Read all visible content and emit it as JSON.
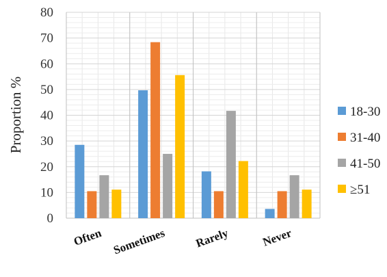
{
  "chart_data": {
    "type": "bar",
    "categories": [
      "Often",
      "Sometimes",
      "Rarely",
      "Never"
    ],
    "series": [
      {
        "name": "18-30",
        "color": "#5B9BD5",
        "values": [
          28.5,
          49.7,
          18.2,
          3.6
        ]
      },
      {
        "name": "31-40",
        "color": "#ED7D31",
        "values": [
          10.5,
          68.4,
          10.5,
          10.5
        ]
      },
      {
        "name": "41-50",
        "color": "#A5A5A5",
        "values": [
          16.7,
          25.0,
          41.7,
          16.7
        ]
      },
      {
        "name": "≥51",
        "color": "#FFC000",
        "values": [
          11.1,
          55.6,
          22.2,
          11.1
        ]
      }
    ],
    "ylabel": "Proportion %",
    "ylim": [
      0,
      80
    ],
    "yticks": [
      0,
      10,
      20,
      30,
      40,
      50,
      60,
      70,
      80
    ],
    "grid": true,
    "legend_position": "right"
  }
}
